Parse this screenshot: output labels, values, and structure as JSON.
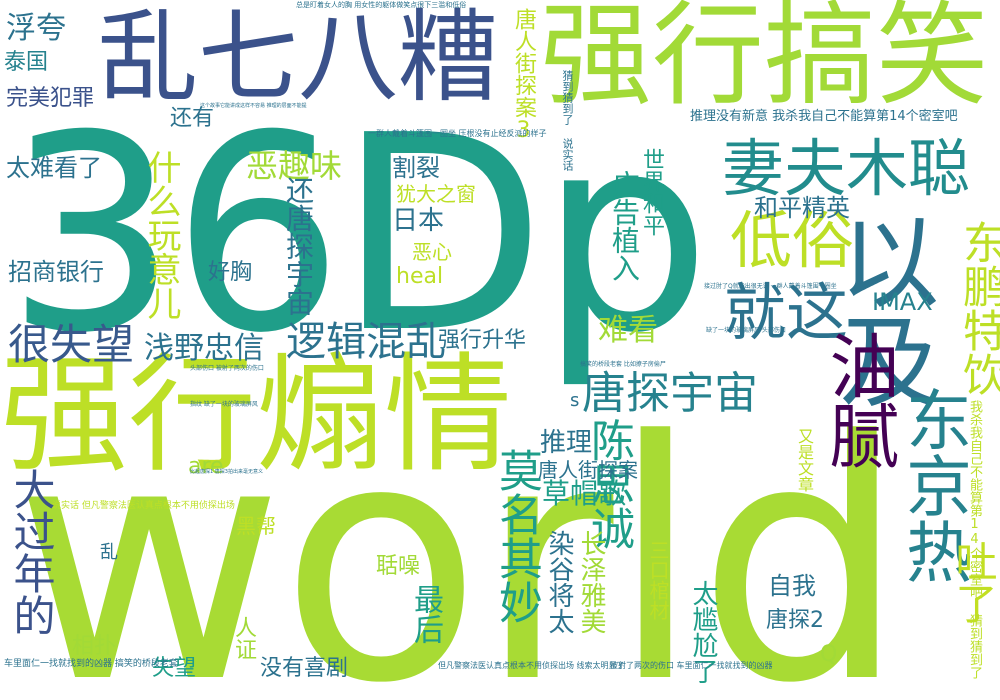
{
  "colors": {
    "dark_purple": "#440154",
    "indigo": "#3b528b",
    "blue_teal": "#31688e",
    "teal": "#26828e",
    "teal_green": "#1f9e89",
    "green": "#35b779",
    "lime": "#6ece58",
    "yellow_green": "#b5de2b",
    "yellow": "#fde725"
  },
  "words": [
    {
      "id": "w-world",
      "text": "world",
      "color": "#a8db34"
    },
    {
      "id": "w-36dp",
      "text": "36Dp",
      "color": "#1f9e89"
    },
    {
      "id": "w-qiangxing-shanqing",
      "text": "强行煽情",
      "color": "#bddf26"
    },
    {
      "id": "w-qiangxing-gaoxiao",
      "text": "强行搞笑",
      "color": "#a2da37"
    },
    {
      "id": "w-luanqibazao",
      "text": "乱七八糟",
      "color": "#3b528b"
    },
    {
      "id": "w-yiji",
      "text": "以及",
      "color": "#2c728e"
    },
    {
      "id": "w-qifu-mucong",
      "text": "妻夫木聪",
      "color": "#228c8d"
    },
    {
      "id": "w-didi-su",
      "text": "低俗",
      "color": "#bddf26"
    },
    {
      "id": "w-jiuzhe",
      "text": "就这",
      "color": "#2c728e"
    },
    {
      "id": "w-younai",
      "text": "油腻",
      "color": "#440154"
    },
    {
      "id": "w-dongjingre",
      "text": "东京热",
      "color": "#26828e"
    },
    {
      "id": "w-dongpeng",
      "text": "东鹏特饮",
      "color": "#bddf26"
    },
    {
      "id": "w-tangtan-yuzhou",
      "text": "唐探宇宙",
      "color": "#26828e"
    },
    {
      "id": "w-chensicheng",
      "text": "陈思诚",
      "color": "#1f9e89"
    },
    {
      "id": "w-luoji-hunluan",
      "text": "逻辑混乱",
      "color": "#2c728e"
    },
    {
      "id": "w-qianye",
      "text": "浅野忠信",
      "color": "#2c728e"
    },
    {
      "id": "w-henshiwang",
      "text": "很失望",
      "color": "#38598c"
    },
    {
      "id": "w-moming",
      "text": "莫名其妙",
      "color": "#1f9e89"
    },
    {
      "id": "w-dagunian",
      "text": "大过年的",
      "color": "#3b528b"
    },
    {
      "id": "w-tuleli",
      "text": "吐了",
      "color": "#c2df23"
    },
    {
      "id": "w-fukua",
      "text": "浮夸",
      "color": "#2c728e"
    },
    {
      "id": "w-taiguo",
      "text": "泰国",
      "color": "#26828e"
    },
    {
      "id": "w-wanmei",
      "text": "完美犯罪",
      "color": "#3b528b"
    },
    {
      "id": "w-haiyou",
      "text": "还有",
      "color": "#2c728e"
    },
    {
      "id": "w-tainankan",
      "text": "太难看了",
      "color": "#2c728e"
    },
    {
      "id": "w-zhaoshang",
      "text": "招商银行",
      "color": "#2c728e"
    },
    {
      "id": "w-shenme-wanyi",
      "text": "什么玩意儿",
      "color": "#bddf26"
    },
    {
      "id": "w-equwei",
      "text": "恶趣味",
      "color": "#a2da37"
    },
    {
      "id": "w-haixiong",
      "text": "好胸",
      "color": "#2c728e"
    },
    {
      "id": "w-hai-tangtan",
      "text": "还唐探宇宙",
      "color": "#2c728e"
    },
    {
      "id": "w-gelie",
      "text": "割裂",
      "color": "#2c728e"
    },
    {
      "id": "w-youtai",
      "text": "犹大之窗",
      "color": "#bddf26"
    },
    {
      "id": "w-riben",
      "text": "日本",
      "color": "#2c728e"
    },
    {
      "id": "w-exin",
      "text": "恶心",
      "color": "#bddf26"
    },
    {
      "id": "w-heal",
      "text": "heal",
      "color": "#bddf26"
    },
    {
      "id": "w-guanggao",
      "text": "广告植入",
      "color": "#1f9e89"
    },
    {
      "id": "w-shijie",
      "text": "世界和平",
      "color": "#1f9e89"
    },
    {
      "id": "w-heping",
      "text": "和平精英",
      "color": "#2c728e"
    },
    {
      "id": "w-nankan",
      "text": "难看",
      "color": "#a2da37"
    },
    {
      "id": "w-qiangxing-shenghua",
      "text": "强行升华",
      "color": "#2c728e"
    },
    {
      "id": "w-imax",
      "text": "IMAX",
      "color": "#26828e"
    },
    {
      "id": "w-tuili",
      "text": "推理",
      "color": "#2c728e"
    },
    {
      "id": "w-tangren-jietan",
      "text": "唐人街探案",
      "color": "#2c728e"
    },
    {
      "id": "w-tangren-jietan3",
      "text": "唐人街探案3",
      "color": "#bddf26"
    },
    {
      "id": "w-caomaoge",
      "text": "草帽歌",
      "color": "#1f9e89"
    },
    {
      "id": "w-are",
      "text": "are",
      "color": "#a2da37"
    },
    {
      "id": "w-s",
      "text": "s",
      "color": "#2c728e"
    },
    {
      "id": "w-heibang",
      "text": "黑帮",
      "color": "#bddf26"
    },
    {
      "id": "w-luan",
      "text": "乱",
      "color": "#2c728e"
    },
    {
      "id": "w-guozao",
      "text": "聒噪",
      "color": "#a2da37"
    },
    {
      "id": "w-zuihou",
      "text": "最后",
      "color": "#1f9e89"
    },
    {
      "id": "w-rangu",
      "text": "染谷将太",
      "color": "#2c728e"
    },
    {
      "id": "w-changze",
      "text": "长泽雅美",
      "color": "#a2da37"
    },
    {
      "id": "w-sankou",
      "text": "三口棺材",
      "color": "#bddf26"
    },
    {
      "id": "w-ziwo",
      "text": "自我",
      "color": "#2c728e"
    },
    {
      "id": "w-tangtan2",
      "text": "唐探2",
      "color": "#2c728e"
    },
    {
      "id": "w-q",
      "text": "Q",
      "color": "#a2da37"
    },
    {
      "id": "w-taigangga",
      "text": "太尴尬了",
      "color": "#1f9e89"
    },
    {
      "id": "w-renzheng",
      "text": "人证",
      "color": "#a2da37"
    },
    {
      "id": "w-xiangpu",
      "text": "相扑",
      "color": "#a2da37"
    },
    {
      "id": "w-shiwang",
      "text": "失望",
      "color": "#1f9e89"
    },
    {
      "id": "w-meiyou-xiju",
      "text": "没有喜剧",
      "color": "#2c728e"
    },
    {
      "id": "w-youshi-wenzhang",
      "text": "又是文章",
      "color": "#bddf26"
    },
    {
      "id": "w-tuili-meiyou",
      "text": "推理没有新意 我杀我自己不能算第14个密室吧",
      "color": "#2c728e"
    },
    {
      "id": "w-woshawo-v",
      "text": "我杀我自己不能算第14个密室吧 猜到猜到了",
      "color": "#bddf26"
    },
    {
      "id": "w-caidao",
      "text": "猜到猜到了 说实话",
      "color": "#2c728e"
    },
    {
      "id": "w-shuoshihua",
      "text": "说实话 但凡警察法医认真点根本不用侦探出场",
      "color": "#bddf26"
    },
    {
      "id": "w-chelimian",
      "text": "车里面仁一找就找到的凶器 搞笑的桥段老套",
      "color": "#2c728e"
    },
    {
      "id": "w-danfan",
      "text": "但凡警察法医认真点根本不用侦探出场 线索太明显了",
      "color": "#2c728e"
    },
    {
      "id": "w-beishele",
      "text": "被射了两次的伤口 车里面仁一找就找到的凶器",
      "color": "#2c728e"
    },
    {
      "id": "w-zongshi",
      "text": "总是盯着女人的胸 用女性的躯体做笑点很下三滥和低俗",
      "color": "#2c728e"
    },
    {
      "id": "w-yiqunren",
      "text": "一群人戴着斗篷围一圈坐 压根没有止经反派的样子",
      "color": "#2c728e"
    },
    {
      "id": "w-jiexia",
      "text": "接过肘了Q就能出很无语 一群人戴着斗篷围一圈坐",
      "color": "#2c728e"
    },
    {
      "id": "w-quele",
      "text": "缺了一块的玻璃屏风 头部伤口",
      "color": "#2c728e"
    },
    {
      "id": "w-toubu",
      "text": "头部伤口 被射了两次的伤口",
      "color": "#2c728e"
    },
    {
      "id": "w-gaoxiao-qiaoduan",
      "text": "搞笑的桥段老套 比如撩子房偷尸",
      "color": "#2c728e"
    },
    {
      "id": "w-zhanting",
      "text": "这个故事它能讲成这样不容易 推理的层面不能提",
      "color": "#2c728e"
    },
    {
      "id": "w-zhiwen",
      "text": "指纹 缺了一块的玻璃屏风",
      "color": "#2c728e"
    },
    {
      "id": "w-bikejie",
      "text": "比起唐探1 唐探3拍出来毫无意义",
      "color": "#2c728e"
    }
  ]
}
